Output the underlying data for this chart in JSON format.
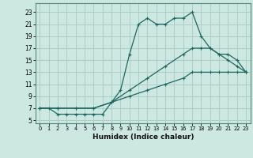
{
  "xlabel": "Humidex (Indice chaleur)",
  "bg_color": "#cce8e0",
  "grid_color": "#aacfc8",
  "line_color": "#1a6860",
  "xlim": [
    -0.5,
    23.5
  ],
  "ylim": [
    4.5,
    24.5
  ],
  "xticks": [
    0,
    1,
    2,
    3,
    4,
    5,
    6,
    7,
    8,
    9,
    10,
    11,
    12,
    13,
    14,
    15,
    16,
    17,
    18,
    19,
    20,
    21,
    22,
    23
  ],
  "yticks": [
    5,
    7,
    9,
    11,
    13,
    15,
    17,
    19,
    21,
    23
  ],
  "line1_x": [
    0,
    1,
    2,
    3,
    4,
    5,
    6,
    7,
    8,
    9,
    10,
    11,
    12,
    13,
    14,
    15,
    16,
    17,
    18,
    19,
    20,
    21,
    22,
    23
  ],
  "line1_y": [
    7,
    7,
    6,
    6,
    6,
    6,
    6,
    6,
    8,
    10,
    16,
    21,
    22,
    21,
    21,
    22,
    22,
    23,
    19,
    17,
    16,
    15,
    14,
    13
  ],
  "line2_x": [
    0,
    2,
    4,
    6,
    8,
    10,
    12,
    14,
    16,
    17,
    18,
    19,
    20,
    21,
    22,
    23
  ],
  "line2_y": [
    7,
    7,
    7,
    7,
    8,
    10,
    12,
    14,
    16,
    17,
    17,
    17,
    16,
    16,
    15,
    13
  ],
  "line3_x": [
    0,
    2,
    4,
    6,
    8,
    10,
    12,
    14,
    16,
    17,
    18,
    19,
    20,
    21,
    22,
    23
  ],
  "line3_y": [
    7,
    7,
    7,
    7,
    8,
    9,
    10,
    11,
    12,
    13,
    13,
    13,
    13,
    13,
    13,
    13
  ]
}
